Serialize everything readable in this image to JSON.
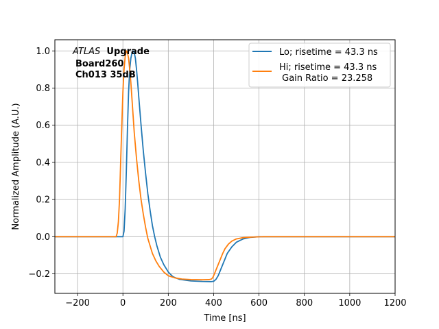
{
  "chart_data": {
    "type": "line",
    "xlabel": "Time [ns]",
    "ylabel": "Normalized Amplitude (A.U.)",
    "xlim": [
      -300,
      1200
    ],
    "ylim": [
      -0.305,
      1.06
    ],
    "xticks": [
      -200,
      0,
      200,
      400,
      600,
      800,
      1000,
      1200
    ],
    "xtick_labels": [
      "−200",
      "0",
      "200",
      "400",
      "600",
      "800",
      "1000",
      "1200"
    ],
    "yticks": [
      -0.2,
      0.0,
      0.2,
      0.4,
      0.6,
      0.8,
      1.0
    ],
    "ytick_labels": [
      "−0.2",
      "0.0",
      "0.2",
      "0.4",
      "0.6",
      "0.8",
      "1.0"
    ],
    "grid": true,
    "legend_position": "top-right",
    "annotation": {
      "experiment": "ATLAS",
      "experiment_suffix": "Upgrade",
      "board": "Board260",
      "channel": "Ch013 35dB"
    },
    "series": [
      {
        "name": "Lo; risetime = 43.3 ns",
        "color": "#1f77b4",
        "x": [
          -300,
          -10,
          0,
          5,
          10,
          15,
          20,
          25,
          30,
          35,
          40,
          45,
          50,
          55,
          60,
          65,
          70,
          80,
          90,
          100,
          110,
          120,
          130,
          140,
          150,
          165,
          180,
          200,
          220,
          250,
          300,
          350,
          390,
          400,
          410,
          420,
          430,
          440,
          450,
          460,
          480,
          500,
          530,
          560,
          600,
          650,
          700,
          1200
        ],
        "y": [
          0.0,
          0.0,
          0.0,
          0.03,
          0.15,
          0.35,
          0.58,
          0.78,
          0.9,
          0.96,
          0.99,
          1.0,
          0.99,
          0.96,
          0.9,
          0.83,
          0.75,
          0.6,
          0.46,
          0.34,
          0.23,
          0.14,
          0.06,
          0.0,
          -0.05,
          -0.11,
          -0.15,
          -0.19,
          -0.215,
          -0.23,
          -0.238,
          -0.241,
          -0.242,
          -0.24,
          -0.23,
          -0.21,
          -0.18,
          -0.15,
          -0.12,
          -0.09,
          -0.055,
          -0.03,
          -0.012,
          -0.004,
          0.0,
          0.0,
          0.0,
          0.0
        ]
      },
      {
        "name": "Hi; risetime = 43.3 ns\n Gain Ratio = 23.258",
        "color": "#ff7f0e",
        "x": [
          -300,
          -40,
          -30,
          -25,
          -20,
          -15,
          -10,
          -5,
          0,
          5,
          10,
          15,
          20,
          25,
          30,
          35,
          40,
          45,
          50,
          60,
          70,
          80,
          90,
          100,
          110,
          120,
          130,
          145,
          160,
          180,
          200,
          230,
          260,
          300,
          350,
          380,
          390,
          395,
          400,
          410,
          420,
          430,
          440,
          450,
          465,
          480,
          500,
          530,
          570,
          620,
          700,
          1200
        ],
        "y": [
          0.0,
          0.0,
          0.0,
          0.02,
          0.08,
          0.2,
          0.4,
          0.6,
          0.78,
          0.9,
          0.97,
          1.0,
          0.99,
          0.96,
          0.9,
          0.83,
          0.74,
          0.65,
          0.56,
          0.42,
          0.3,
          0.2,
          0.12,
          0.05,
          -0.01,
          -0.05,
          -0.09,
          -0.13,
          -0.16,
          -0.19,
          -0.21,
          -0.222,
          -0.228,
          -0.231,
          -0.232,
          -0.231,
          -0.228,
          -0.222,
          -0.21,
          -0.18,
          -0.15,
          -0.12,
          -0.09,
          -0.065,
          -0.04,
          -0.024,
          -0.012,
          -0.005,
          -0.002,
          0.0,
          0.0,
          0.0
        ]
      }
    ]
  }
}
